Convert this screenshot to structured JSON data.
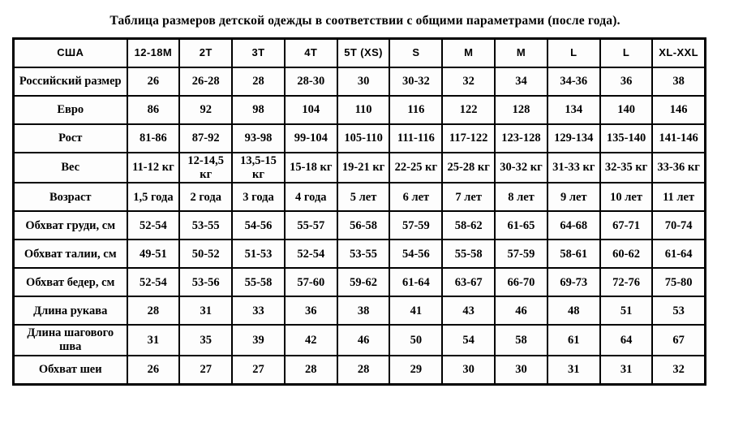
{
  "title": "Таблица размеров детской одежды в соответствии с общими параметрами (после года).",
  "table": {
    "header": [
      "США",
      "12-18M",
      "2T",
      "3T",
      "4T",
      "5T (XS)",
      "S",
      "M",
      "M",
      "L",
      "L",
      "XL-XXL"
    ],
    "rows": [
      {
        "label": "Российский размер",
        "values": [
          "26",
          "26-28",
          "28",
          "28-30",
          "30",
          "30-32",
          "32",
          "34",
          "34-36",
          "36",
          "38"
        ]
      },
      {
        "label": "Евро",
        "values": [
          "86",
          "92",
          "98",
          "104",
          "110",
          "116",
          "122",
          "128",
          "134",
          "140",
          "146"
        ]
      },
      {
        "label": "Рост",
        "values": [
          "81-86",
          "87-92",
          "93-98",
          "99-104",
          "105-110",
          "111-116",
          "117-122",
          "123-128",
          "129-134",
          "135-140",
          "141-146"
        ]
      },
      {
        "label": "Вес",
        "values": [
          "11-12 кг",
          "12-14,5 кг",
          "13,5-15 кг",
          "15-18 кг",
          "19-21 кг",
          "22-25 кг",
          "25-28 кг",
          "30-32 кг",
          "31-33 кг",
          "32-35 кг",
          "33-36 кг"
        ]
      },
      {
        "label": "Возраст",
        "values": [
          "1,5 года",
          "2 года",
          "3 года",
          "4 года",
          "5 лет",
          "6 лет",
          "7 лет",
          "8 лет",
          "9 лет",
          "10 лет",
          "11 лет"
        ]
      },
      {
        "label": "Обхват груди, см",
        "values": [
          "52-54",
          "53-55",
          "54-56",
          "55-57",
          "56-58",
          "57-59",
          "58-62",
          "61-65",
          "64-68",
          "67-71",
          "70-74"
        ]
      },
      {
        "label": "Обхват талии, см",
        "values": [
          "49-51",
          "50-52",
          "51-53",
          "52-54",
          "53-55",
          "54-56",
          "55-58",
          "57-59",
          "58-61",
          "60-62",
          "61-64"
        ]
      },
      {
        "label": "Обхват бедер, см",
        "values": [
          "52-54",
          "53-56",
          "55-58",
          "57-60",
          "59-62",
          "61-64",
          "63-67",
          "66-70",
          "69-73",
          "72-76",
          "75-80"
        ]
      },
      {
        "label": "Длина рукава",
        "values": [
          "28",
          "31",
          "33",
          "36",
          "38",
          "41",
          "43",
          "46",
          "48",
          "51",
          "53"
        ]
      },
      {
        "label": "Длина шагового шва",
        "values": [
          "31",
          "35",
          "39",
          "42",
          "46",
          "50",
          "54",
          "58",
          "61",
          "64",
          "67"
        ]
      },
      {
        "label": "Обхват шеи",
        "values": [
          "26",
          "27",
          "27",
          "28",
          "28",
          "29",
          "30",
          "30",
          "31",
          "31",
          "32"
        ]
      }
    ]
  }
}
